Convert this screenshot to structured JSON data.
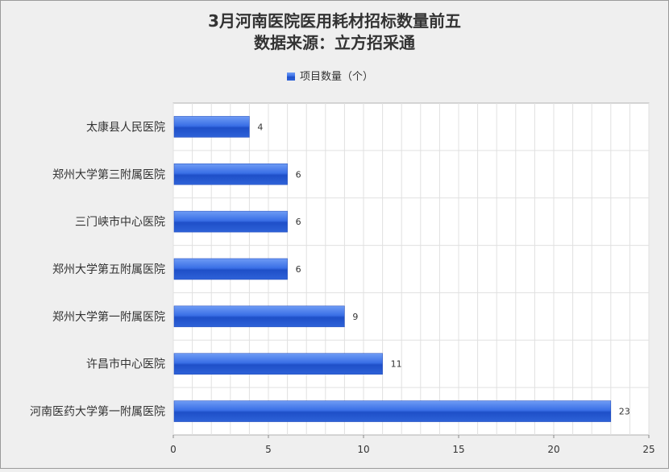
{
  "chart_data": {
    "type": "bar",
    "orientation": "horizontal",
    "title": "3月河南医院医用耗材招标数量前五",
    "subtitle": "数据来源：立方招采通",
    "legend": {
      "position": "top",
      "entries": [
        "项目数量（个）"
      ]
    },
    "categories": [
      "太康县人民医院",
      "郑州大学第三附属医院",
      "三门峡市中心医院",
      "郑州大学第五附属医院",
      "郑州大学第一附属医院",
      "许昌市中心医院",
      "河南医药大学第一附属医院"
    ],
    "series": [
      {
        "name": "项目数量（个）",
        "values": [
          4,
          6,
          6,
          6,
          9,
          11,
          23
        ],
        "color": "#2e62d8"
      }
    ],
    "xlim": [
      0,
      25
    ],
    "xticks": [
      0,
      5,
      10,
      15,
      20,
      25
    ],
    "grid": true,
    "data_labels": true
  }
}
